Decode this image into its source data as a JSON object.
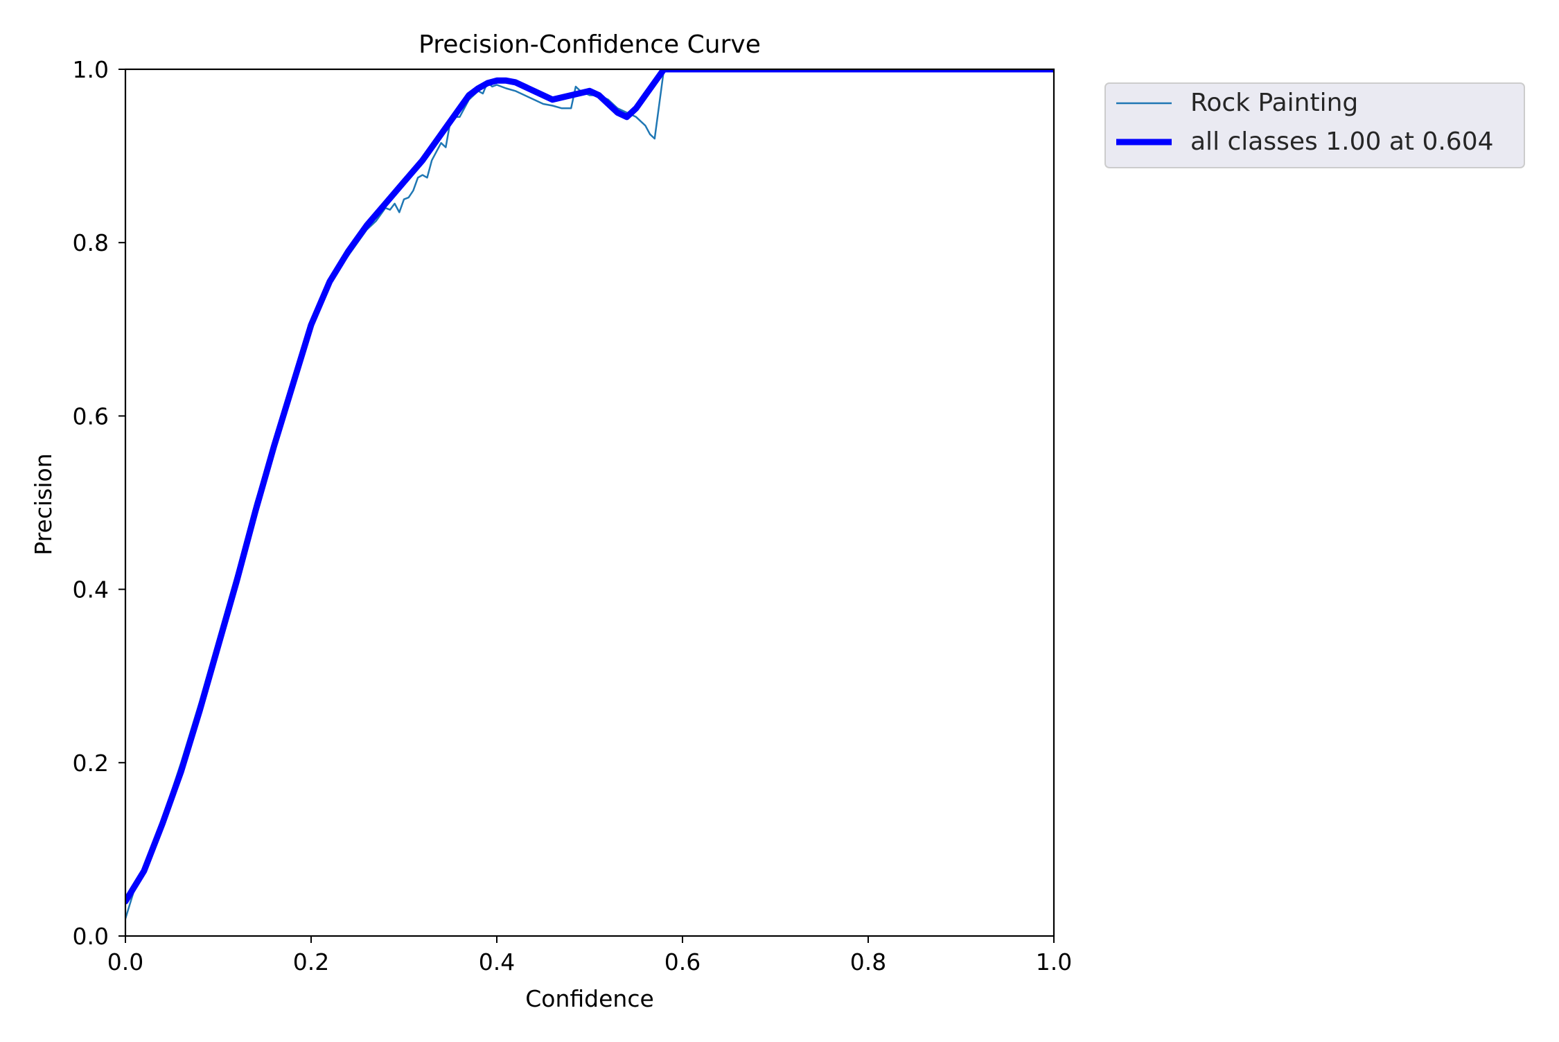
{
  "chart_data": {
    "type": "line",
    "title": "Precision-Confidence Curve",
    "xlabel": "Confidence",
    "ylabel": "Precision",
    "xlim": [
      0,
      1
    ],
    "ylim": [
      0,
      1
    ],
    "xticks": [
      "0.0",
      "0.2",
      "0.4",
      "0.6",
      "0.8",
      "1.0"
    ],
    "yticks": [
      "0.0",
      "0.2",
      "0.4",
      "0.6",
      "0.8",
      "1.0"
    ],
    "grid": false,
    "legend_position": "outside-top-right",
    "series": [
      {
        "name": "Rock Painting",
        "color": "#1f77b4",
        "style": "thin",
        "x": [
          0.0,
          0.01,
          0.02,
          0.04,
          0.06,
          0.08,
          0.1,
          0.12,
          0.14,
          0.16,
          0.18,
          0.2,
          0.215,
          0.22,
          0.23,
          0.24,
          0.25,
          0.26,
          0.265,
          0.27,
          0.28,
          0.285,
          0.29,
          0.295,
          0.3,
          0.305,
          0.31,
          0.315,
          0.32,
          0.325,
          0.33,
          0.335,
          0.34,
          0.345,
          0.35,
          0.355,
          0.36,
          0.37,
          0.38,
          0.385,
          0.39,
          0.395,
          0.4,
          0.41,
          0.42,
          0.43,
          0.44,
          0.45,
          0.46,
          0.47,
          0.48,
          0.485,
          0.49,
          0.5,
          0.51,
          0.52,
          0.53,
          0.54,
          0.55,
          0.56,
          0.565,
          0.57,
          0.575,
          0.58,
          0.6,
          0.7,
          0.8,
          0.9,
          1.0
        ],
        "y": [
          0.02,
          0.055,
          0.08,
          0.135,
          0.2,
          0.27,
          0.345,
          0.42,
          0.5,
          0.57,
          0.64,
          0.7,
          0.745,
          0.755,
          0.77,
          0.785,
          0.8,
          0.815,
          0.82,
          0.825,
          0.84,
          0.838,
          0.845,
          0.835,
          0.85,
          0.852,
          0.86,
          0.875,
          0.878,
          0.875,
          0.895,
          0.905,
          0.915,
          0.91,
          0.94,
          0.945,
          0.945,
          0.965,
          0.975,
          0.972,
          0.985,
          0.98,
          0.982,
          0.978,
          0.975,
          0.97,
          0.965,
          0.96,
          0.958,
          0.955,
          0.955,
          0.98,
          0.975,
          0.97,
          0.97,
          0.965,
          0.955,
          0.95,
          0.945,
          0.935,
          0.925,
          0.92,
          0.96,
          1.0,
          1.0,
          1.0,
          1.0,
          1.0,
          1.0
        ]
      },
      {
        "name": "all classes 1.00 at 0.604",
        "color": "#0000ff",
        "style": "thick",
        "x": [
          0.0,
          0.02,
          0.04,
          0.06,
          0.08,
          0.1,
          0.12,
          0.14,
          0.16,
          0.18,
          0.2,
          0.22,
          0.24,
          0.26,
          0.28,
          0.3,
          0.32,
          0.34,
          0.36,
          0.37,
          0.38,
          0.39,
          0.4,
          0.41,
          0.42,
          0.44,
          0.46,
          0.48,
          0.5,
          0.51,
          0.52,
          0.53,
          0.54,
          0.55,
          0.56,
          0.57,
          0.58,
          0.59,
          0.6,
          0.604,
          0.7,
          0.8,
          0.9,
          1.0
        ],
        "y": [
          0.04,
          0.075,
          0.13,
          0.19,
          0.26,
          0.335,
          0.41,
          0.49,
          0.565,
          0.635,
          0.705,
          0.755,
          0.79,
          0.82,
          0.845,
          0.87,
          0.895,
          0.925,
          0.955,
          0.97,
          0.978,
          0.984,
          0.987,
          0.987,
          0.985,
          0.975,
          0.965,
          0.97,
          0.975,
          0.97,
          0.96,
          0.95,
          0.945,
          0.955,
          0.97,
          0.985,
          1.0,
          1.0,
          1.0,
          1.0,
          1.0,
          1.0,
          1.0,
          1.0
        ]
      }
    ]
  }
}
